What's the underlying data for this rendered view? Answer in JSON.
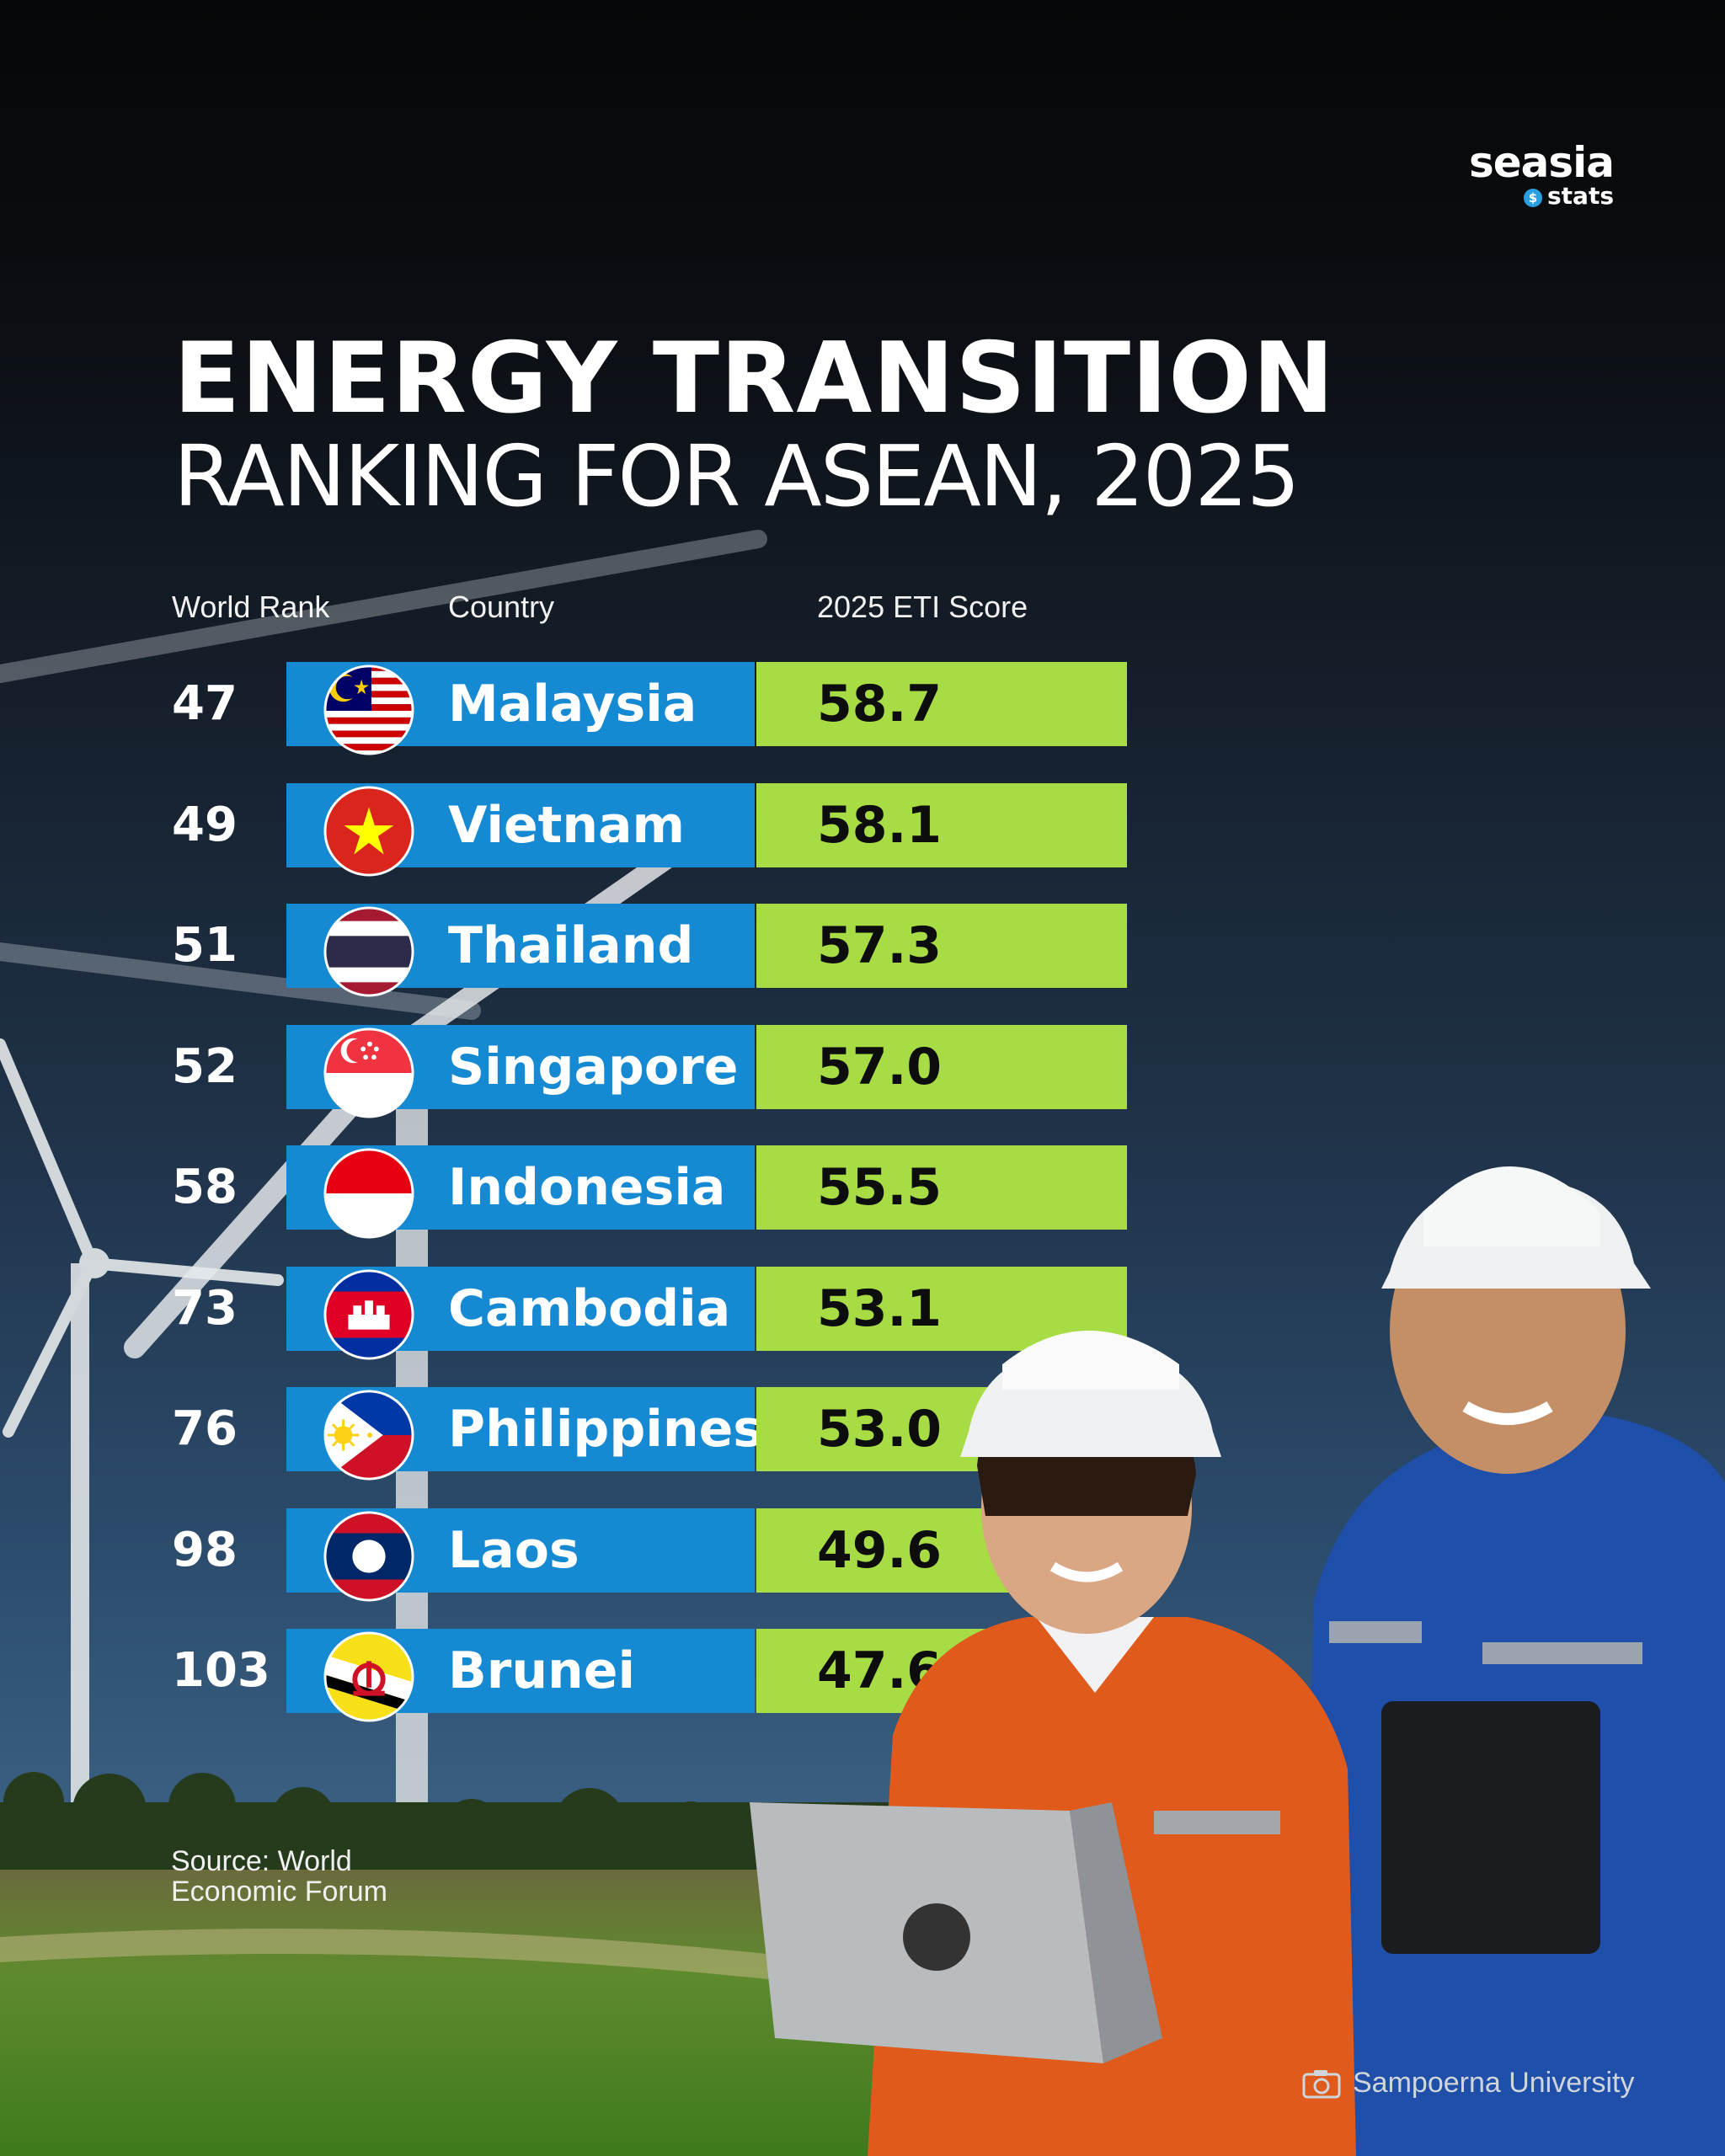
{
  "brand": {
    "name": "seasia",
    "sub": "stats",
    "dot_glyph": "$"
  },
  "title": "ENERGY TRANSITION",
  "subtitle": "RANKING FOR ASEAN, 2025",
  "headers": {
    "rank": "World Rank",
    "country": "Country",
    "score": "2025 ETI Score"
  },
  "source": "Source: World Economic Forum",
  "credit": "Sampoerna University",
  "colors": {
    "country_bar": "#1689d3",
    "score_bar": "#a8dc45"
  },
  "chart_data": {
    "type": "table",
    "title": "ENERGY TRANSITION RANKING FOR ASEAN, 2025",
    "columns": [
      "World Rank",
      "Country",
      "2025 ETI Score"
    ],
    "rows": [
      {
        "rank": "47",
        "country": "Malaysia",
        "score": "58.7",
        "flag": "malaysia-flag-icon"
      },
      {
        "rank": "49",
        "country": "Vietnam",
        "score": "58.1",
        "flag": "vietnam-flag-icon"
      },
      {
        "rank": "51",
        "country": "Thailand",
        "score": "57.3",
        "flag": "thailand-flag-icon"
      },
      {
        "rank": "52",
        "country": "Singapore",
        "score": "57.0",
        "flag": "singapore-flag-icon"
      },
      {
        "rank": "58",
        "country": "Indonesia",
        "score": "55.5",
        "flag": "indonesia-flag-icon"
      },
      {
        "rank": "73",
        "country": "Cambodia",
        "score": "53.1",
        "flag": "cambodia-flag-icon"
      },
      {
        "rank": "76",
        "country": "Philippines",
        "score": "53.0",
        "flag": "philippines-flag-icon"
      },
      {
        "rank": "98",
        "country": "Laos",
        "score": "49.6",
        "flag": "laos-flag-icon"
      },
      {
        "rank": "103",
        "country": "Brunei",
        "score": "47.6",
        "flag": "brunei-flag-icon"
      }
    ]
  }
}
